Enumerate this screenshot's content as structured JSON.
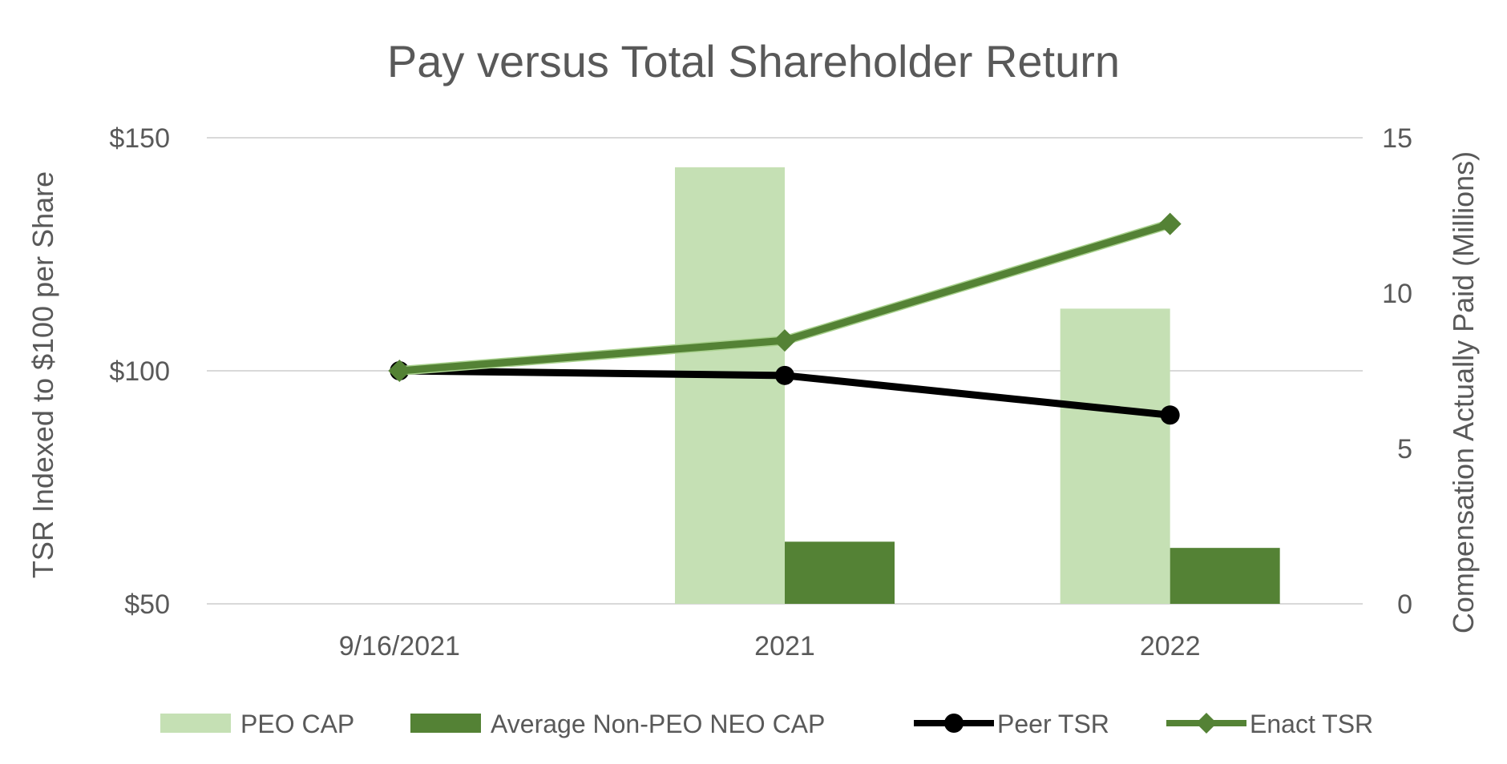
{
  "chart_data": {
    "type": "bar",
    "title": "Pay versus Total Shareholder Return",
    "categories": [
      "9/16/2021",
      "2021",
      "2022"
    ],
    "y_left": {
      "label": "TSR Indexed to $100 per Share",
      "range": [
        50,
        150
      ],
      "ticks": [
        50,
        100,
        150
      ],
      "tick_labels": [
        "$50",
        "$100",
        "$150"
      ]
    },
    "y_right": {
      "label": "Compensation Actually Paid (Millions)",
      "range": [
        0,
        15
      ],
      "ticks": [
        0,
        5,
        10,
        15
      ],
      "tick_labels": [
        "0",
        "5",
        "10",
        "15"
      ]
    },
    "grid": true,
    "legend_position": "bottom",
    "series": [
      {
        "name": "PEO CAP",
        "kind": "bar",
        "axis": "right",
        "color": "#c5e0b4",
        "values": [
          null,
          14.05,
          9.5
        ]
      },
      {
        "name": "Average Non-PEO NEO CAP",
        "kind": "bar",
        "axis": "right",
        "color": "#548235",
        "values": [
          null,
          2.0,
          1.8
        ]
      },
      {
        "name": "Peer TSR",
        "kind": "line",
        "marker": "circle",
        "axis": "left",
        "color": "#000000",
        "values": [
          100,
          99,
          90.5
        ]
      },
      {
        "name": "Enact TSR",
        "kind": "line",
        "marker": "diamond",
        "axis": "left",
        "color": "#548235",
        "values": [
          100,
          106.5,
          131.5
        ]
      }
    ]
  }
}
